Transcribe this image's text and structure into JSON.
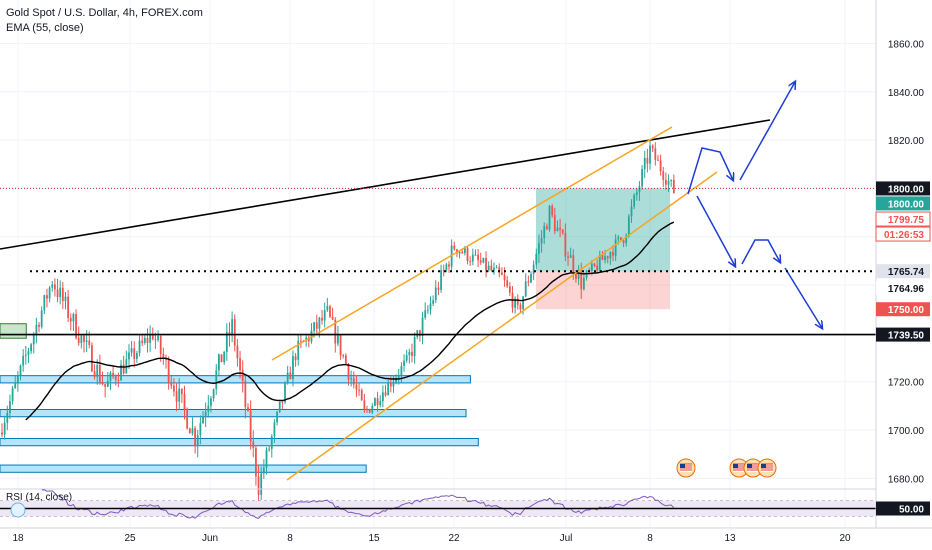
{
  "header": {
    "title": "Gold Spot / U.S. Dollar, 4h, FOREX.com",
    "indicator": "EMA (55, close)",
    "rsi_label": "RSI (14, close)"
  },
  "colors": {
    "bull": "#26a69a",
    "bear": "#ef5350",
    "ema": "#000000",
    "channel": "#f5a623",
    "arrows": "#1e3cd6",
    "support_boxes": "#b3e5fc",
    "rsi_line": "#7e57c2",
    "rsi_band": "#ede7f6"
  },
  "chart_data": {
    "type": "candlestick",
    "symbol": "Gold Spot / U.S. Dollar",
    "timeframe": "4h",
    "source": "FOREX.com",
    "ylim": [
      1676,
      1878
    ],
    "y_ticks": [
      1680,
      1700,
      1720,
      1740,
      1760,
      1780,
      1800,
      1820,
      1840,
      1860
    ],
    "x_ticks": [
      "18",
      "25",
      "Jun",
      "8",
      "15",
      "22",
      "Jul",
      "8",
      "13",
      "20"
    ],
    "segments": [
      {
        "bars": 20,
        "from": 1699,
        "to": 1762,
        "vol": 5
      },
      {
        "bars": 20,
        "from": 1762,
        "to": 1718,
        "vol": 6
      },
      {
        "bars": 18,
        "from": 1718,
        "to": 1740,
        "vol": 5
      },
      {
        "bars": 16,
        "from": 1740,
        "to": 1697,
        "vol": 6
      },
      {
        "bars": 14,
        "from": 1697,
        "to": 1743,
        "vol": 6
      },
      {
        "bars": 10,
        "from": 1743,
        "to": 1677,
        "vol": 6
      },
      {
        "bars": 14,
        "from": 1677,
        "to": 1732,
        "vol": 5
      },
      {
        "bars": 12,
        "from": 1732,
        "to": 1748,
        "vol": 5
      },
      {
        "bars": 14,
        "from": 1748,
        "to": 1707,
        "vol": 5
      },
      {
        "bars": 16,
        "from": 1707,
        "to": 1728,
        "vol": 4
      },
      {
        "bars": 18,
        "from": 1728,
        "to": 1776,
        "vol": 5
      },
      {
        "bars": 18,
        "from": 1776,
        "to": 1763,
        "vol": 4
      },
      {
        "bars": 6,
        "from": 1763,
        "to": 1749,
        "vol": 4
      },
      {
        "bars": 12,
        "from": 1749,
        "to": 1790,
        "vol": 5
      },
      {
        "bars": 12,
        "from": 1790,
        "to": 1761,
        "vol": 5
      },
      {
        "bars": 16,
        "from": 1761,
        "to": 1780,
        "vol": 4
      },
      {
        "bars": 10,
        "from": 1780,
        "to": 1816,
        "vol": 5
      },
      {
        "bars": 9,
        "from": 1816,
        "to": 1799,
        "vol": 4
      }
    ],
    "ema": {
      "period": 55,
      "source": "close"
    },
    "price_levels": [
      {
        "label": "1800.00",
        "style": "dotted-red"
      },
      {
        "label": "1765.74",
        "style": "dotted-black"
      },
      {
        "label": "1739.50",
        "style": "solid-black"
      }
    ],
    "price_tags": [
      {
        "label": "1800.00",
        "value": 1800.0,
        "kind": "dark"
      },
      {
        "label": "1800.00",
        "value": 1800.0,
        "kind": "green",
        "offset": 1
      },
      {
        "label": "1799.75",
        "value": 1799.75,
        "kind": "red-outline",
        "offset": 2
      },
      {
        "label": "01:26:53",
        "value": 1799.75,
        "kind": "red-outline",
        "offset": 3
      },
      {
        "label": "1765.74",
        "value": 1765.74,
        "kind": "gray"
      },
      {
        "label": "1764.96",
        "value": 1764.96,
        "kind": "white",
        "offset": 1
      },
      {
        "label": "1750.00",
        "value": 1750.0,
        "kind": "red"
      },
      {
        "label": "1739.50",
        "value": 1739.5,
        "kind": "dark"
      }
    ],
    "support_zones": [
      {
        "low": 1719.5,
        "high": 1722.5,
        "end_pct": 0.537
      },
      {
        "low": 1705.5,
        "high": 1708.5,
        "end_pct": 0.532
      },
      {
        "low": 1693.5,
        "high": 1696.5,
        "end_pct": 0.546
      },
      {
        "low": 1682.5,
        "high": 1685.5,
        "end_pct": 0.418
      },
      {
        "low": 1738,
        "high": 1744,
        "end_pct": 0.03
      }
    ],
    "rsi": {
      "period": 14,
      "ylim": [
        0,
        100
      ],
      "bands": [
        30,
        70
      ],
      "value_label": "50.00",
      "value": 50
    }
  }
}
